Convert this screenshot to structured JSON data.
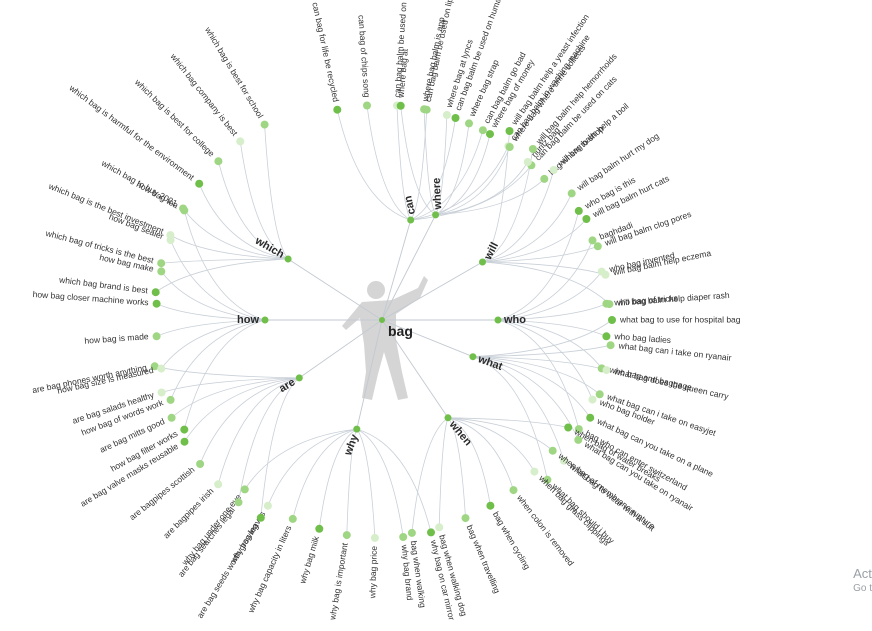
{
  "center": "bag",
  "branches": [
    {
      "label": "can",
      "leaves": [
        "can bag for life be recycled",
        "can bag of chips song",
        "can bag balm be used on dogs",
        "can bag balm be used on lips",
        "can bag balm be used on humans",
        "can bag balm go bad",
        "can bag balm in washing machine",
        "can bag balm be used on cats"
      ]
    },
    {
      "label": "where",
      "leaves": [
        "where bag at",
        "where bag balm is app",
        "where bag at lyncs",
        "where bag strap",
        "where bag of money",
        "where bag where urine collects",
        "nuritz bag",
        "bag where to shop"
      ]
    },
    {
      "label": "will",
      "leaves": [
        "will bag balm help a yeast infection",
        "will bag balm help hemorrhoids",
        "will bag balm help a boil",
        "will bag balm hurt my dog",
        "will bag balm hurt cats",
        "will bag balm clog pores",
        "will bag balm help eczema",
        "will bag balm help diaper rash"
      ]
    },
    {
      "label": "who",
      "leaves": [
        "who bag is this",
        "baghdadi",
        "who bag invented",
        "who bag of tricks",
        "who bag ladies",
        "who bag and baggage",
        "who bag holder",
        "bag who can enter switzerland"
      ]
    },
    {
      "label": "what",
      "leaves": [
        "what bag to use for hospital bag",
        "what bag can i take on ryanair",
        "what bag does the queen carry",
        "what bag can i take on easyjet",
        "what bag can you take on a plane",
        "what bag can you take on ryanair",
        "what bag to wear with a suit",
        "what bag should i buy"
      ]
    },
    {
      "label": "when",
      "leaves": [
        "when bag of water breaks",
        "when bag of membrane rupture",
        "when bag grass clippings",
        "when colon is removed",
        "bag when cycling",
        "bag when travelling",
        "bag when walking dog",
        "bag when walking"
      ]
    },
    {
      "label": "why",
      "leaves": [
        "why bag on car mirror",
        "why bag brand",
        "why bag price",
        "why bag is important",
        "why bag milk",
        "why bag capacity in liters",
        "why bag leaves",
        "why bag under one eye"
      ]
    },
    {
      "label": "are",
      "leaves": [
        "are bag seeds worth growing",
        "are bag searches legal",
        "are bagpipes irish",
        "are bagpipes scottish",
        "are bag valve masks reusable",
        "are bag mitts good",
        "are bag salads healthy",
        "are bag phones worth anything"
      ]
    },
    {
      "label": "how",
      "leaves": [
        "how bag filter works",
        "how bag of words work",
        "how bag size is measured",
        "how bag is made",
        "how bag closer machine works",
        "how bag make",
        "how bag sealer",
        "how bag tea"
      ]
    },
    {
      "label": "which",
      "leaves": [
        "which bag brand is best",
        "which bag of tricks is the best",
        "which bag is the best investment",
        "which bag to buy 2021",
        "which bag is harmful for the environment",
        "which bag is best for college",
        "which bag company is best",
        "which bag is best for school"
      ]
    }
  ],
  "colors": {
    "dot_dark": "#6fbf4a",
    "dot_mid": "#9fd683",
    "dot_light": "#d6eec9",
    "edge": "#c9d0d8"
  },
  "watermark": {
    "line1": "Act",
    "line2": "Go t"
  }
}
